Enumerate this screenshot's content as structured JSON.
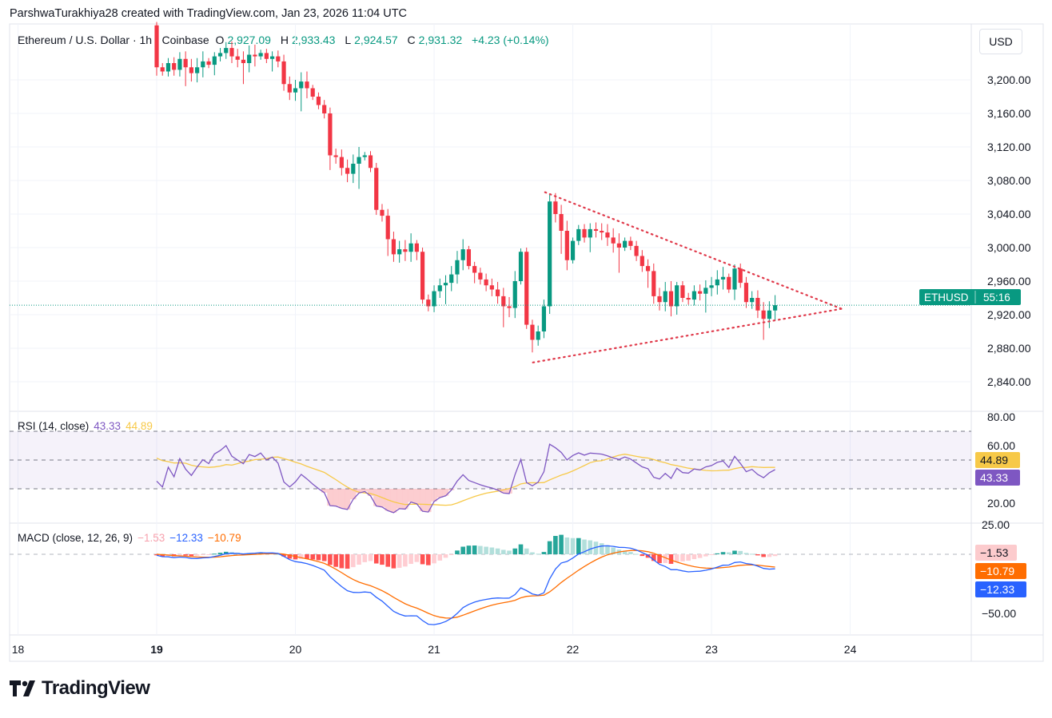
{
  "credit": "ParshwaTurakhiya28 created with TradingView.com, Jan 23, 2026 11:04 UTC",
  "legend": {
    "symbol": "Ethereum / U.S. Dollar · 1h · Coinbase",
    "o_label": "O",
    "o": "2,927.09",
    "h_label": "H",
    "h": "2,933.43",
    "l_label": "L",
    "l": "2,924.57",
    "c_label": "C",
    "c": "2,931.32",
    "change": "+4.23 (+0.14%)"
  },
  "currency": "USD",
  "price_badge": {
    "ticker": "ETHUSD",
    "countdown": "55:16"
  },
  "rsi_legend": {
    "title": "RSI (14, close)",
    "rsi": "43.33",
    "ma": "44.89"
  },
  "macd_legend": {
    "title": "MACD (close, 12, 26, 9)",
    "hist": "−1.53",
    "macd": "−12.33",
    "signal": "−10.79"
  },
  "logo": "TradingView",
  "colors": {
    "up": "#089981",
    "down": "#f23645",
    "rsi": "#7e57c2",
    "rsi_ma": "#f7c948",
    "macd": "#2962ff",
    "signal": "#ff6d00",
    "trendline": "#e0394a"
  },
  "chart_data": [
    {
      "type": "candlestick",
      "title": "Ethereum / U.S. Dollar · 1h · Coinbase",
      "interval_hours": 1,
      "start": "Jan 19 00:00",
      "first_open": 3265,
      "closes": [
        3215,
        3210,
        3220,
        3212,
        3225,
        3215,
        3208,
        3215,
        3222,
        3218,
        3228,
        3232,
        3238,
        3228,
        3224,
        3220,
        3230,
        3228,
        3232,
        3225,
        3228,
        3222,
        3195,
        3185,
        3190,
        3198,
        3190,
        3180,
        3170,
        3160,
        3110,
        3108,
        3095,
        3088,
        3100,
        3108,
        3110,
        3095,
        3045,
        3038,
        3010,
        2992,
        2998,
        2995,
        3005,
        2995,
        2938,
        2930,
        2948,
        2955,
        2958,
        2968,
        2985,
        2998,
        2978,
        2970,
        2962,
        2955,
        2950,
        2942,
        2930,
        2928,
        2960,
        2995,
        2908,
        2890,
        2900,
        2930,
        3055,
        3040,
        3020,
        2985,
        3008,
        3022,
        3012,
        3022,
        3020,
        3018,
        3012,
        3005,
        3000,
        3008,
        3002,
        2990,
        2978,
        2972,
        2942,
        2935,
        2948,
        2930,
        2955,
        2940,
        2938,
        2948,
        2945,
        2952,
        2955,
        2962,
        2965,
        2950,
        2975,
        2958,
        2935,
        2940,
        2925,
        2915,
        2925,
        2931.32
      ],
      "last_price": 2931.32,
      "price_ticks": [
        "3,200.00",
        "3,160.00",
        "3,120.00",
        "3,080.00",
        "3,040.00",
        "3,000.00",
        "2,960.00",
        "2,920.00",
        "2,880.00",
        "2,840.00"
      ],
      "price_tick_values": [
        3200,
        3160,
        3120,
        3080,
        3040,
        3000,
        2960,
        2920,
        2880,
        2840
      ],
      "ylim": [
        2825,
        3275
      ],
      "x_ticks": [
        {
          "label": "18",
          "hour": -24
        },
        {
          "label": "19",
          "hour": 0,
          "bold": true
        },
        {
          "label": "20",
          "hour": 24
        },
        {
          "label": "21",
          "hour": 48
        },
        {
          "label": "22",
          "hour": 72
        },
        {
          "label": "23",
          "hour": 96
        },
        {
          "label": "24",
          "hour": 120
        }
      ],
      "annotations": [
        {
          "type": "dotted-trendline",
          "name": "upper",
          "from": {
            "hour": 67.2,
            "price": 3066
          },
          "to": {
            "hour": 118.5,
            "price": 2927
          }
        },
        {
          "type": "dotted-trendline",
          "name": "lower",
          "from": {
            "hour": 65.1,
            "price": 2863
          },
          "to": {
            "hour": 118.5,
            "price": 2927
          }
        }
      ]
    },
    {
      "type": "line",
      "title": "RSI (14, close)",
      "series": [
        {
          "name": "RSI",
          "last": 43.33
        },
        {
          "name": "RSI MA",
          "last": 44.89
        }
      ],
      "ylim": [
        15,
        85
      ],
      "bands": [
        70,
        50,
        30
      ],
      "y_ticks": [
        "80.00",
        "60.00",
        "20.00"
      ],
      "y_tick_values": [
        80,
        60,
        20
      ]
    },
    {
      "type": "bar+line",
      "title": "MACD (close, 12, 26, 9)",
      "series": [
        {
          "name": "Histogram",
          "last": -1.53
        },
        {
          "name": "MACD",
          "last": -12.33
        },
        {
          "name": "Signal",
          "last": -10.79
        }
      ],
      "ylim": [
        -68,
        35
      ],
      "y_ticks": [
        "25.00",
        "−50.00"
      ],
      "y_tick_values": [
        25,
        -50
      ]
    }
  ]
}
